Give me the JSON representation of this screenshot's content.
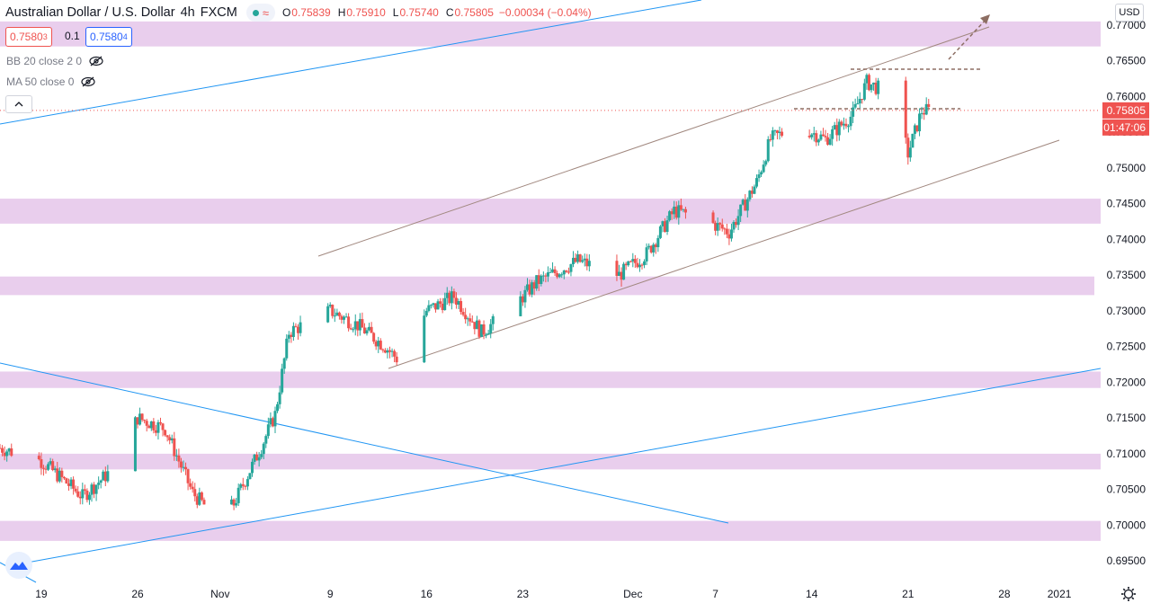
{
  "header": {
    "symbol_title": "Australian Dollar / U.S. Dollar",
    "interval": "4h",
    "source": "FXCM",
    "ohlc": {
      "o_label": "O",
      "o_value": "0.75839",
      "h_label": "H",
      "h_value": "0.75910",
      "l_label": "L",
      "l_value": "0.75740",
      "c_label": "C",
      "c_value": "0.75805",
      "change": "−0.00034 (−0.04%)"
    }
  },
  "trade": {
    "sell_price": "0.7580",
    "sell_pip": "3",
    "spread": "0.1",
    "buy_price": "0.7580",
    "buy_pip": "4"
  },
  "indicators": [
    {
      "label": "BB 20 close 2 0",
      "icon": "eye-off-icon"
    },
    {
      "label": "MA 50 close 0",
      "icon": "eye-off-icon"
    }
  ],
  "currency_button": "USD",
  "price_axis": {
    "ticks": [
      "0.77000",
      "0.76500",
      "0.76000",
      "0.75500",
      "0.75000",
      "0.74500",
      "0.74000",
      "0.73500",
      "0.73000",
      "0.72500",
      "0.72000",
      "0.71500",
      "0.71000",
      "0.70500",
      "0.70000",
      "0.69500"
    ],
    "last_price_label": "0.75805",
    "countdown_label": "01:47:06"
  },
  "time_axis": {
    "ticks": [
      "19",
      "26",
      "Nov",
      "9",
      "16",
      "23",
      "Dec",
      "7",
      "14",
      "21",
      "28",
      "2021"
    ]
  },
  "colors": {
    "up": "#26a69a",
    "down": "#ef5350",
    "zone": "#e1bee7",
    "trendline_blue": "#2196f3",
    "channel": "#a1887f",
    "level_dash": "#8d6e63"
  },
  "chart_data": {
    "type": "candlestick",
    "ylim": [
      0.692,
      0.7735
    ],
    "x_range": [
      "2020-10-16",
      "2021-01-04"
    ],
    "last_price": 0.75805,
    "horizontal_zones": [
      [
        0.767,
        0.7705
      ],
      [
        0.7422,
        0.7457
      ],
      [
        0.7322,
        0.7348
      ],
      [
        0.7192,
        0.7215
      ],
      [
        0.7078,
        0.71
      ],
      [
        0.6978,
        0.7006
      ]
    ],
    "anchors": [
      [
        "2020-10-16",
        0.7108
      ],
      [
        "2020-10-19",
        0.709
      ],
      [
        "2020-10-22",
        0.704
      ],
      [
        "2020-10-24",
        0.7075
      ],
      [
        "2020-10-26",
        0.715
      ],
      [
        "2020-10-28",
        0.7135
      ],
      [
        "2020-10-30",
        0.7045
      ],
      [
        "2020-11-01",
        0.7005
      ],
      [
        "2020-11-02",
        0.703
      ],
      [
        "2020-11-04",
        0.711
      ],
      [
        "2020-11-05",
        0.7155
      ],
      [
        "2020-11-06",
        0.727
      ],
      [
        "2020-11-09",
        0.73
      ],
      [
        "2020-11-11",
        0.728
      ],
      [
        "2020-11-13",
        0.725
      ],
      [
        "2020-11-14",
        0.723
      ],
      [
        "2020-11-16",
        0.73
      ],
      [
        "2020-11-18",
        0.732
      ],
      [
        "2020-11-20",
        0.727
      ],
      [
        "2020-11-22",
        0.73
      ],
      [
        "2020-11-24",
        0.734
      ],
      [
        "2020-11-27",
        0.737
      ],
      [
        "2020-11-30",
        0.735
      ],
      [
        "2020-12-02",
        0.738
      ],
      [
        "2020-12-04",
        0.744
      ],
      [
        "2020-12-06",
        0.743
      ],
      [
        "2020-12-08",
        0.741
      ],
      [
        "2020-12-10",
        0.748
      ],
      [
        "2020-12-11",
        0.754
      ],
      [
        "2020-12-13",
        0.756
      ],
      [
        "2020-12-15",
        0.754
      ],
      [
        "2020-12-17",
        0.7575
      ],
      [
        "2020-12-18",
        0.762
      ],
      [
        "2020-12-20",
        0.76
      ],
      [
        "2020-12-21",
        0.752
      ],
      [
        "2020-12-22",
        0.758
      ]
    ]
  }
}
